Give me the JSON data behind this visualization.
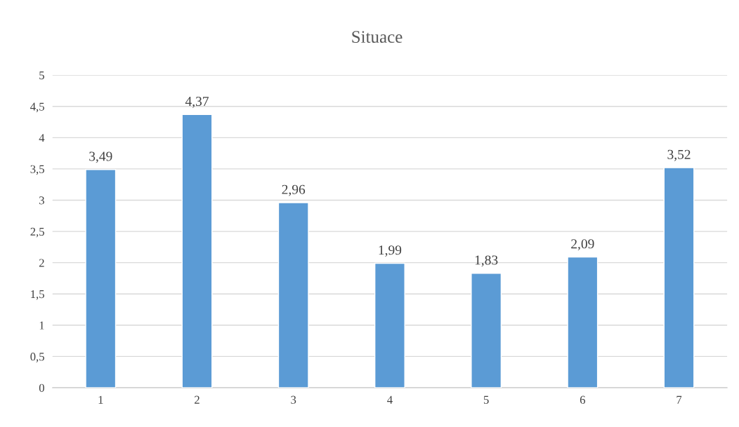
{
  "chart_data": {
    "type": "bar",
    "title": "Situace",
    "categories": [
      "1",
      "2",
      "3",
      "4",
      "5",
      "6",
      "7"
    ],
    "values": [
      3.49,
      4.37,
      2.96,
      1.99,
      1.83,
      2.09,
      3.52
    ],
    "value_labels": [
      "3,49",
      "4,37",
      "2,96",
      "1,99",
      "1,83",
      "2,09",
      "3,52"
    ],
    "color": "#5b9bd5",
    "ylim": [
      0,
      5
    ],
    "yticks": [
      0,
      {
        "value": 0.5,
        "label": "0,5"
      },
      1,
      {
        "value": 1.5,
        "label": "1,5"
      },
      2,
      {
        "value": 2.5,
        "label": "2,5"
      },
      3,
      {
        "value": 3.5,
        "label": "3,5"
      },
      4,
      {
        "value": 4.5,
        "label": "4,5"
      },
      5
    ],
    "grid": "y",
    "legend": false
  }
}
